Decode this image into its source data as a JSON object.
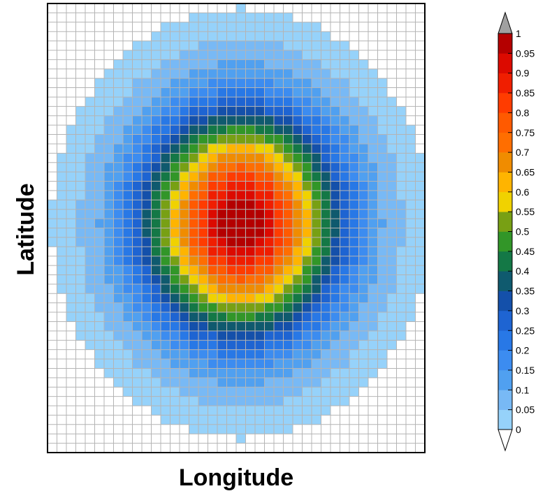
{
  "chart_data": {
    "type": "heatmap",
    "title": "",
    "xlabel": "Longitude",
    "ylabel": "Latitude",
    "grid": true,
    "grid_columns": 40,
    "grid_rows": 48,
    "field": {
      "shape": "gaussian",
      "peak_value": 1,
      "peak_cell": [
        20,
        23
      ],
      "sigma_cells": [
        7.0,
        8.0
      ],
      "min_shown": 0
    },
    "colorbar": {
      "min": 0,
      "max": 1,
      "step": 0.05,
      "position": "right",
      "tick_labels": [
        "1",
        "0.95",
        "0.9",
        "0.85",
        "0.8",
        "0.75",
        "0.7",
        "0.65",
        "0.6",
        "0.55",
        "0.5",
        "0.45",
        "0.4",
        "0.35",
        "0.3",
        "0.25",
        "0.2",
        "0.15",
        "0.1",
        "0.05",
        "0"
      ],
      "colors": [
        "#96d2fa",
        "#78b9f5",
        "#50a0f0",
        "#3c8cf0",
        "#2878e6",
        "#1e64d2",
        "#1450aa",
        "#0f5a6e",
        "#147846",
        "#329628",
        "#78a014",
        "#f0d200",
        "#ffb400",
        "#f08c00",
        "#ff6e00",
        "#ff5a00",
        "#ff3c00",
        "#f01e00",
        "#dc0a00",
        "#b40000"
      ],
      "over_color": "#a0a0a0",
      "under_color": "#ffffff"
    }
  }
}
